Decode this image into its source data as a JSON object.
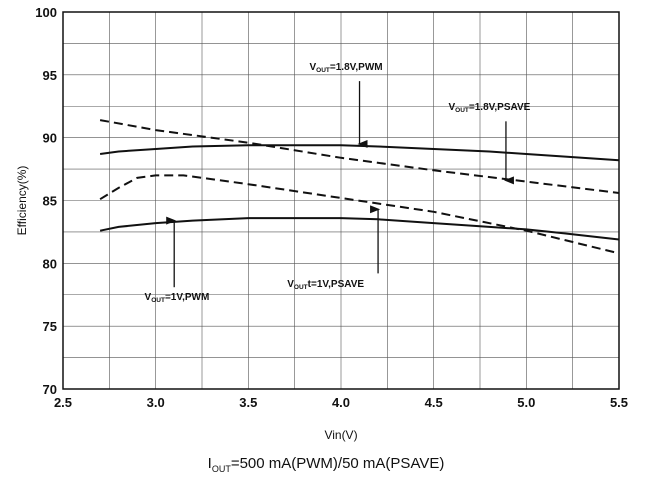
{
  "chart_data": {
    "type": "line",
    "title": "",
    "xlabel": "Vin(V)",
    "ylabel": "Efficiency(%)",
    "xlim": [
      2.5,
      5.5
    ],
    "ylim": [
      70,
      100
    ],
    "xticks": [
      "2.5",
      "3.0",
      "3.5",
      "4.0",
      "4.5",
      "5.0",
      "5.5"
    ],
    "yticks": [
      "70",
      "75",
      "80",
      "85",
      "90",
      "95",
      "100"
    ],
    "grid": true,
    "legend": "none",
    "series": [
      {
        "style": "solid",
        "x": [
          2.7,
          2.8,
          3.0,
          3.2,
          3.5,
          3.8,
          4.0,
          4.2,
          4.5,
          4.8,
          5.0,
          5.2,
          5.5
        ],
        "y": [
          88.7,
          88.9,
          89.1,
          89.3,
          89.4,
          89.4,
          89.4,
          89.3,
          89.1,
          88.9,
          88.7,
          88.5,
          88.2
        ]
      },
      {
        "style": "dashed",
        "x": [
          2.7,
          3.0,
          3.5,
          4.0,
          4.5,
          5.0,
          5.5
        ],
        "y": [
          91.4,
          90.6,
          89.6,
          88.4,
          87.4,
          86.5,
          85.6
        ]
      },
      {
        "style": "solid",
        "x": [
          2.7,
          2.8,
          3.0,
          3.2,
          3.5,
          3.8,
          4.0,
          4.2,
          4.5,
          4.8,
          5.0,
          5.2,
          5.5
        ],
        "y": [
          82.6,
          82.9,
          83.2,
          83.4,
          83.6,
          83.6,
          83.6,
          83.5,
          83.2,
          82.9,
          82.7,
          82.4,
          81.9
        ]
      },
      {
        "style": "dashed",
        "x": [
          2.7,
          2.8,
          2.9,
          3.0,
          3.15,
          3.3,
          3.5,
          4.0,
          4.5,
          5.0,
          5.5
        ],
        "y": [
          85.1,
          86.0,
          86.8,
          87.0,
          87.0,
          86.7,
          86.3,
          85.2,
          84.1,
          82.6,
          80.8
        ]
      }
    ],
    "annotations": [
      {
        "main": "V",
        "sub": "OUT",
        "rest": "=1.8V,PWM",
        "text_x": 3.83,
        "text_y": 95.4,
        "arrow_from": [
          4.1,
          94.5
        ],
        "arrow_to": [
          4.1,
          89.5
        ]
      },
      {
        "main": "V",
        "sub": "OUT",
        "rest": "=1.8V,PSAVE",
        "text_x": 4.58,
        "text_y": 92.2,
        "arrow_from": [
          4.89,
          91.3
        ],
        "arrow_to": [
          4.89,
          86.6
        ]
      },
      {
        "main": "V",
        "sub": "OUT",
        "rest": "=1V,PWM",
        "text_x": 2.94,
        "text_y": 77.1,
        "arrow_from": [
          3.1,
          78.1
        ],
        "arrow_to": [
          3.1,
          83.4
        ]
      },
      {
        "main": "V",
        "sub": "OUT",
        "rest": "t=1V,PSAVE",
        "text_x": 3.71,
        "text_y": 78.1,
        "arrow_from": [
          4.2,
          79.2
        ],
        "arrow_to": [
          4.2,
          84.3
        ]
      }
    ],
    "caption": {
      "main": "I",
      "sub": "OUT",
      "rest": "=500 mA(PWM)/50 mA(PSAVE)"
    }
  }
}
